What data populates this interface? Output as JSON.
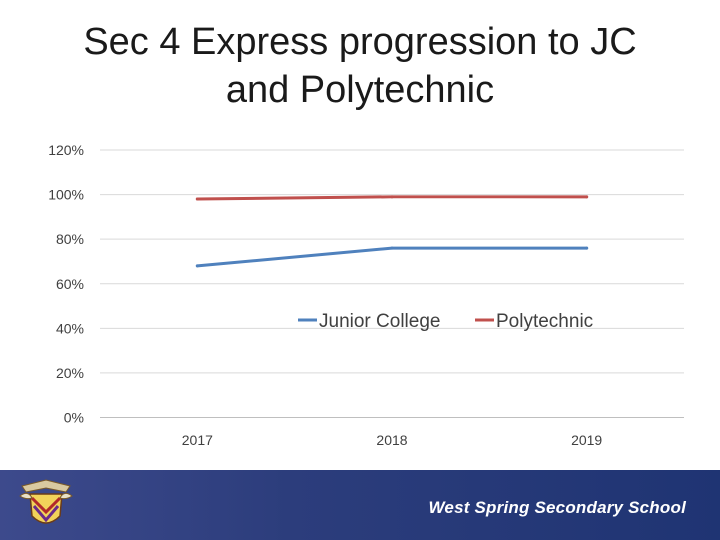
{
  "title": {
    "line1": "Sec 4 Express progression to JC",
    "line2": "and Polytechnic"
  },
  "chart_data": {
    "type": "line",
    "title": "Sec 4 Express progression to JC and Polytechnic",
    "categories": [
      "2017",
      "2018",
      "2019"
    ],
    "series": [
      {
        "name": "Junior College",
        "values": [
          0.68,
          0.76,
          0.76
        ],
        "color": "#4f81bd"
      },
      {
        "name": "Polytechnic",
        "values": [
          0.98,
          0.99,
          0.99
        ],
        "color": "#c0504d"
      }
    ],
    "y_ticks": [
      "0%",
      "20%",
      "40%",
      "60%",
      "80%",
      "100%",
      "120%"
    ],
    "ylim": [
      0,
      1.2
    ],
    "xlabel": "",
    "ylabel": "",
    "grid": true,
    "legend": "center"
  },
  "footer": {
    "school_name": "West Spring Secondary School",
    "crest_icon": "school-crest-icon",
    "background_color": "#2c3d7c"
  }
}
